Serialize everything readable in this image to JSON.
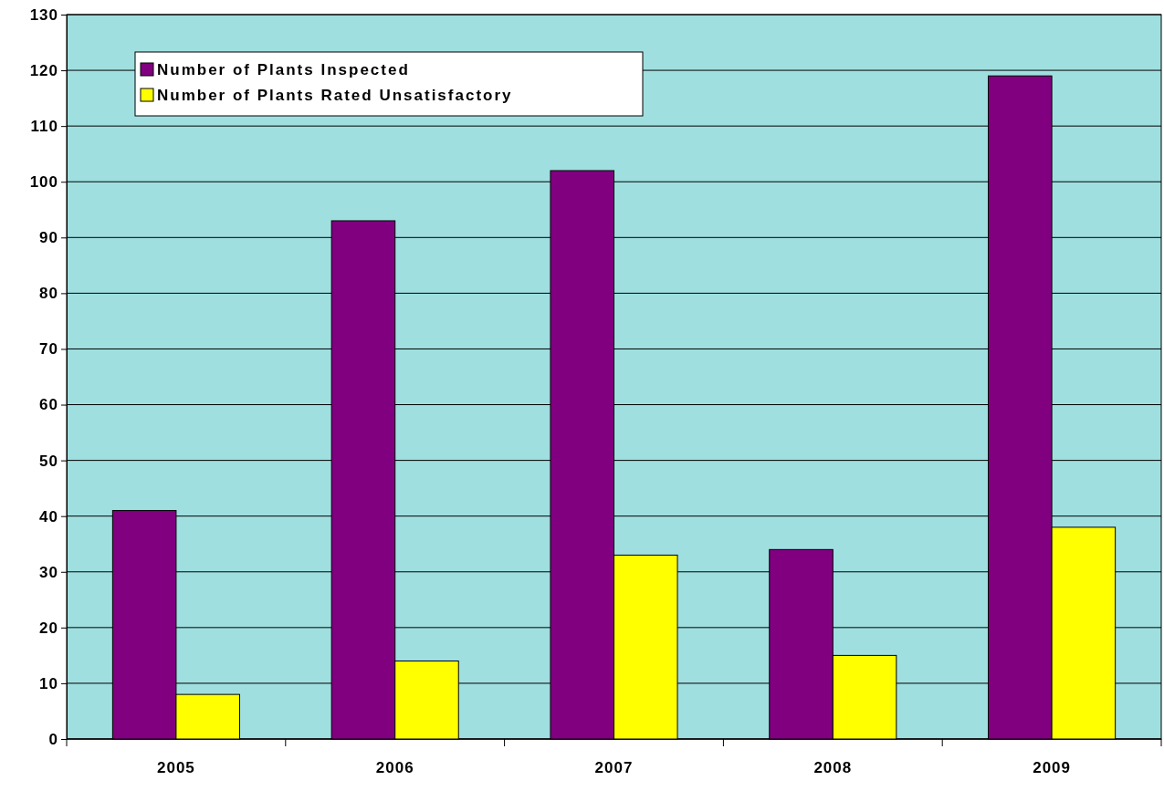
{
  "chart_data": {
    "type": "bar",
    "categories": [
      "2005",
      "2006",
      "2007",
      "2008",
      "2009"
    ],
    "series": [
      {
        "name": "Number of Plants Inspected",
        "color": "#800080",
        "values": [
          41,
          93,
          102,
          34,
          119
        ]
      },
      {
        "name": "Number of Plants Rated Unsatisfactory",
        "color": "#ffff00",
        "values": [
          8,
          14,
          33,
          15,
          38
        ]
      }
    ],
    "ylim": [
      0,
      130
    ],
    "yticks": [
      0,
      10,
      20,
      30,
      40,
      50,
      60,
      70,
      80,
      90,
      100,
      110,
      120,
      130
    ],
    "grid": "y",
    "legend": "top left"
  }
}
